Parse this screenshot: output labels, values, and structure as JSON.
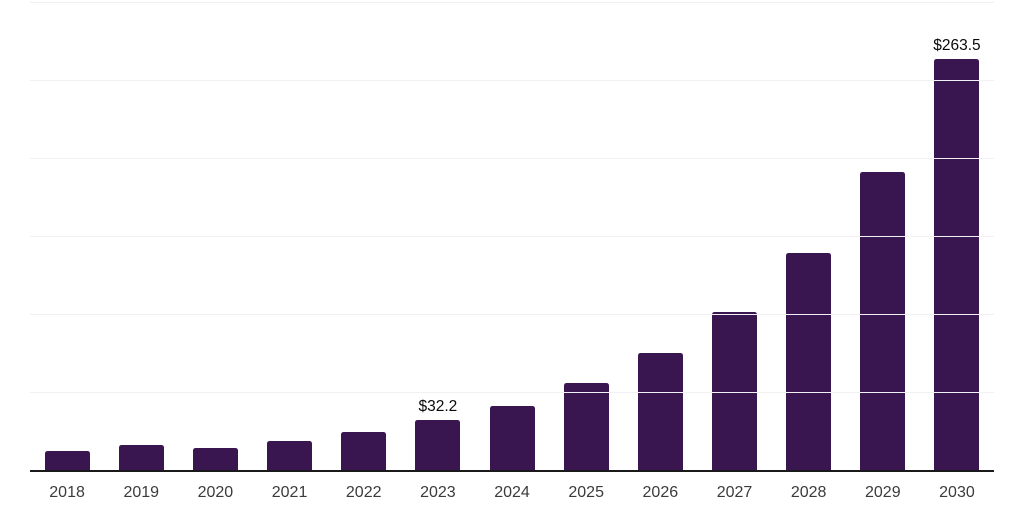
{
  "chart_data": {
    "type": "bar",
    "title": "",
    "xlabel": "",
    "ylabel": "",
    "categories": [
      "2018",
      "2019",
      "2020",
      "2021",
      "2022",
      "2023",
      "2024",
      "2025",
      "2026",
      "2027",
      "2028",
      "2029",
      "2030"
    ],
    "values": [
      12,
      16,
      14.3,
      18.8,
      24.2,
      32.2,
      41,
      56,
      75.2,
      101.3,
      138.9,
      190.8,
      263.5
    ],
    "bar_labels": [
      "",
      "",
      "",
      "",
      "",
      "$32.2",
      "",
      "",
      "",
      "",
      "",
      "",
      "$263.5"
    ],
    "ylim": [
      0,
      300
    ],
    "gridline_step": 50,
    "grid": "horizontal-only",
    "legend": "none",
    "y_tick_labels_visible": false,
    "colors": {
      "bar": "#391650",
      "gridline": "#f1f1f4",
      "axis_line": "#1a1a1a",
      "x_tick_label": "#3b3b3b",
      "bar_value_label": "#0a0a0a",
      "background": "#ffffff"
    }
  }
}
